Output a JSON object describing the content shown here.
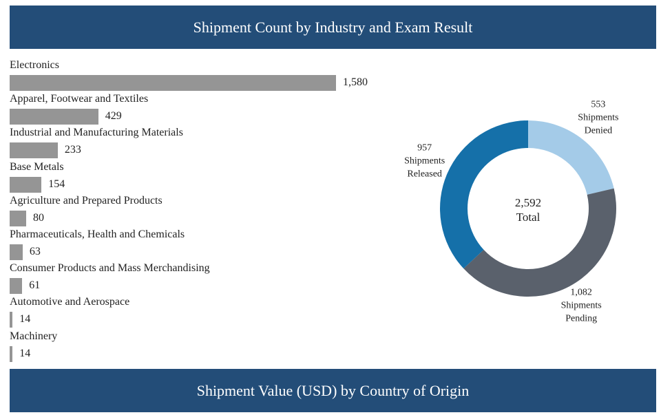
{
  "header": {
    "title": "Shipment Count by Industry and Exam Result"
  },
  "footer": {
    "title": "Shipment Value (USD) by Country of Origin"
  },
  "chart_data": [
    {
      "type": "bar",
      "orientation": "horizontal",
      "categories": [
        "Electronics",
        "Apparel, Footwear and Textiles",
        "Industrial and Manufacturing Materials",
        "Base Metals",
        "Agriculture and Prepared Products",
        "Pharmaceuticals, Health and Chemicals",
        "Consumer Products and Mass Merchandising",
        "Automotive and Aerospace",
        "Machinery"
      ],
      "values": [
        1580,
        429,
        233,
        154,
        80,
        63,
        61,
        14,
        14
      ],
      "value_labels": [
        "1,580",
        "429",
        "233",
        "154",
        "80",
        "63",
        "61",
        "14",
        "14"
      ],
      "bar_color": "#959595"
    },
    {
      "type": "pie",
      "style": "donut",
      "center_value": "2,592",
      "center_label": "Total",
      "slices": [
        {
          "value_label": "553",
          "label_lines": [
            "Shipments",
            "Denied"
          ],
          "value": 553,
          "color": "#a4cbe8"
        },
        {
          "value_label": "1,082",
          "label_lines": [
            "Shipments",
            "Pending"
          ],
          "value": 1082,
          "color": "#5a616c"
        },
        {
          "value_label": "957",
          "label_lines": [
            "Shipments",
            "Released"
          ],
          "value": 957,
          "color": "#1570a9"
        }
      ]
    }
  ]
}
